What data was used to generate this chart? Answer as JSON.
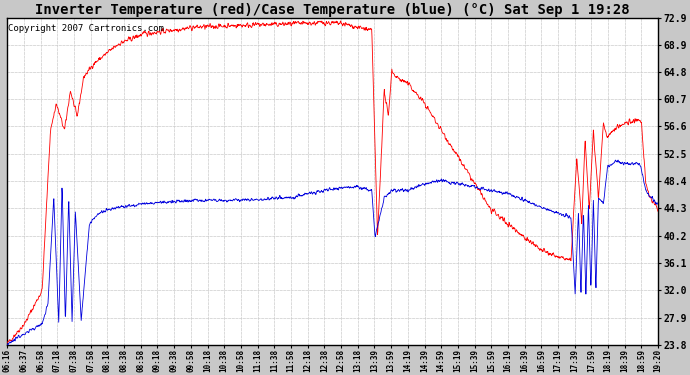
{
  "title": "Inverter Temperature (red)/Case Temperature (blue) (°C) Sat Sep 1 19:28",
  "copyright": "Copyright 2007 Cartronics.com",
  "ylim": [
    23.8,
    72.9
  ],
  "yticks": [
    23.8,
    27.9,
    32.0,
    36.1,
    40.2,
    44.3,
    48.4,
    52.5,
    56.6,
    60.7,
    64.8,
    68.9,
    72.9
  ],
  "xtick_labels": [
    "06:16",
    "06:37",
    "06:58",
    "07:18",
    "07:38",
    "07:58",
    "08:18",
    "08:38",
    "08:58",
    "09:18",
    "09:38",
    "09:58",
    "10:18",
    "10:38",
    "10:58",
    "11:18",
    "11:38",
    "11:58",
    "12:18",
    "12:38",
    "12:58",
    "13:18",
    "13:39",
    "13:59",
    "14:19",
    "14:39",
    "14:59",
    "15:19",
    "15:39",
    "15:59",
    "16:19",
    "16:39",
    "16:59",
    "17:19",
    "17:39",
    "17:59",
    "18:19",
    "18:39",
    "18:59",
    "19:20"
  ],
  "bg_color": "#c8c8c8",
  "plot_bg_color": "#ffffff",
  "grid_color": "#cccccc",
  "red_color": "#ff0000",
  "blue_color": "#0000dd",
  "title_font_size": 10,
  "copyright_font_size": 6.5
}
